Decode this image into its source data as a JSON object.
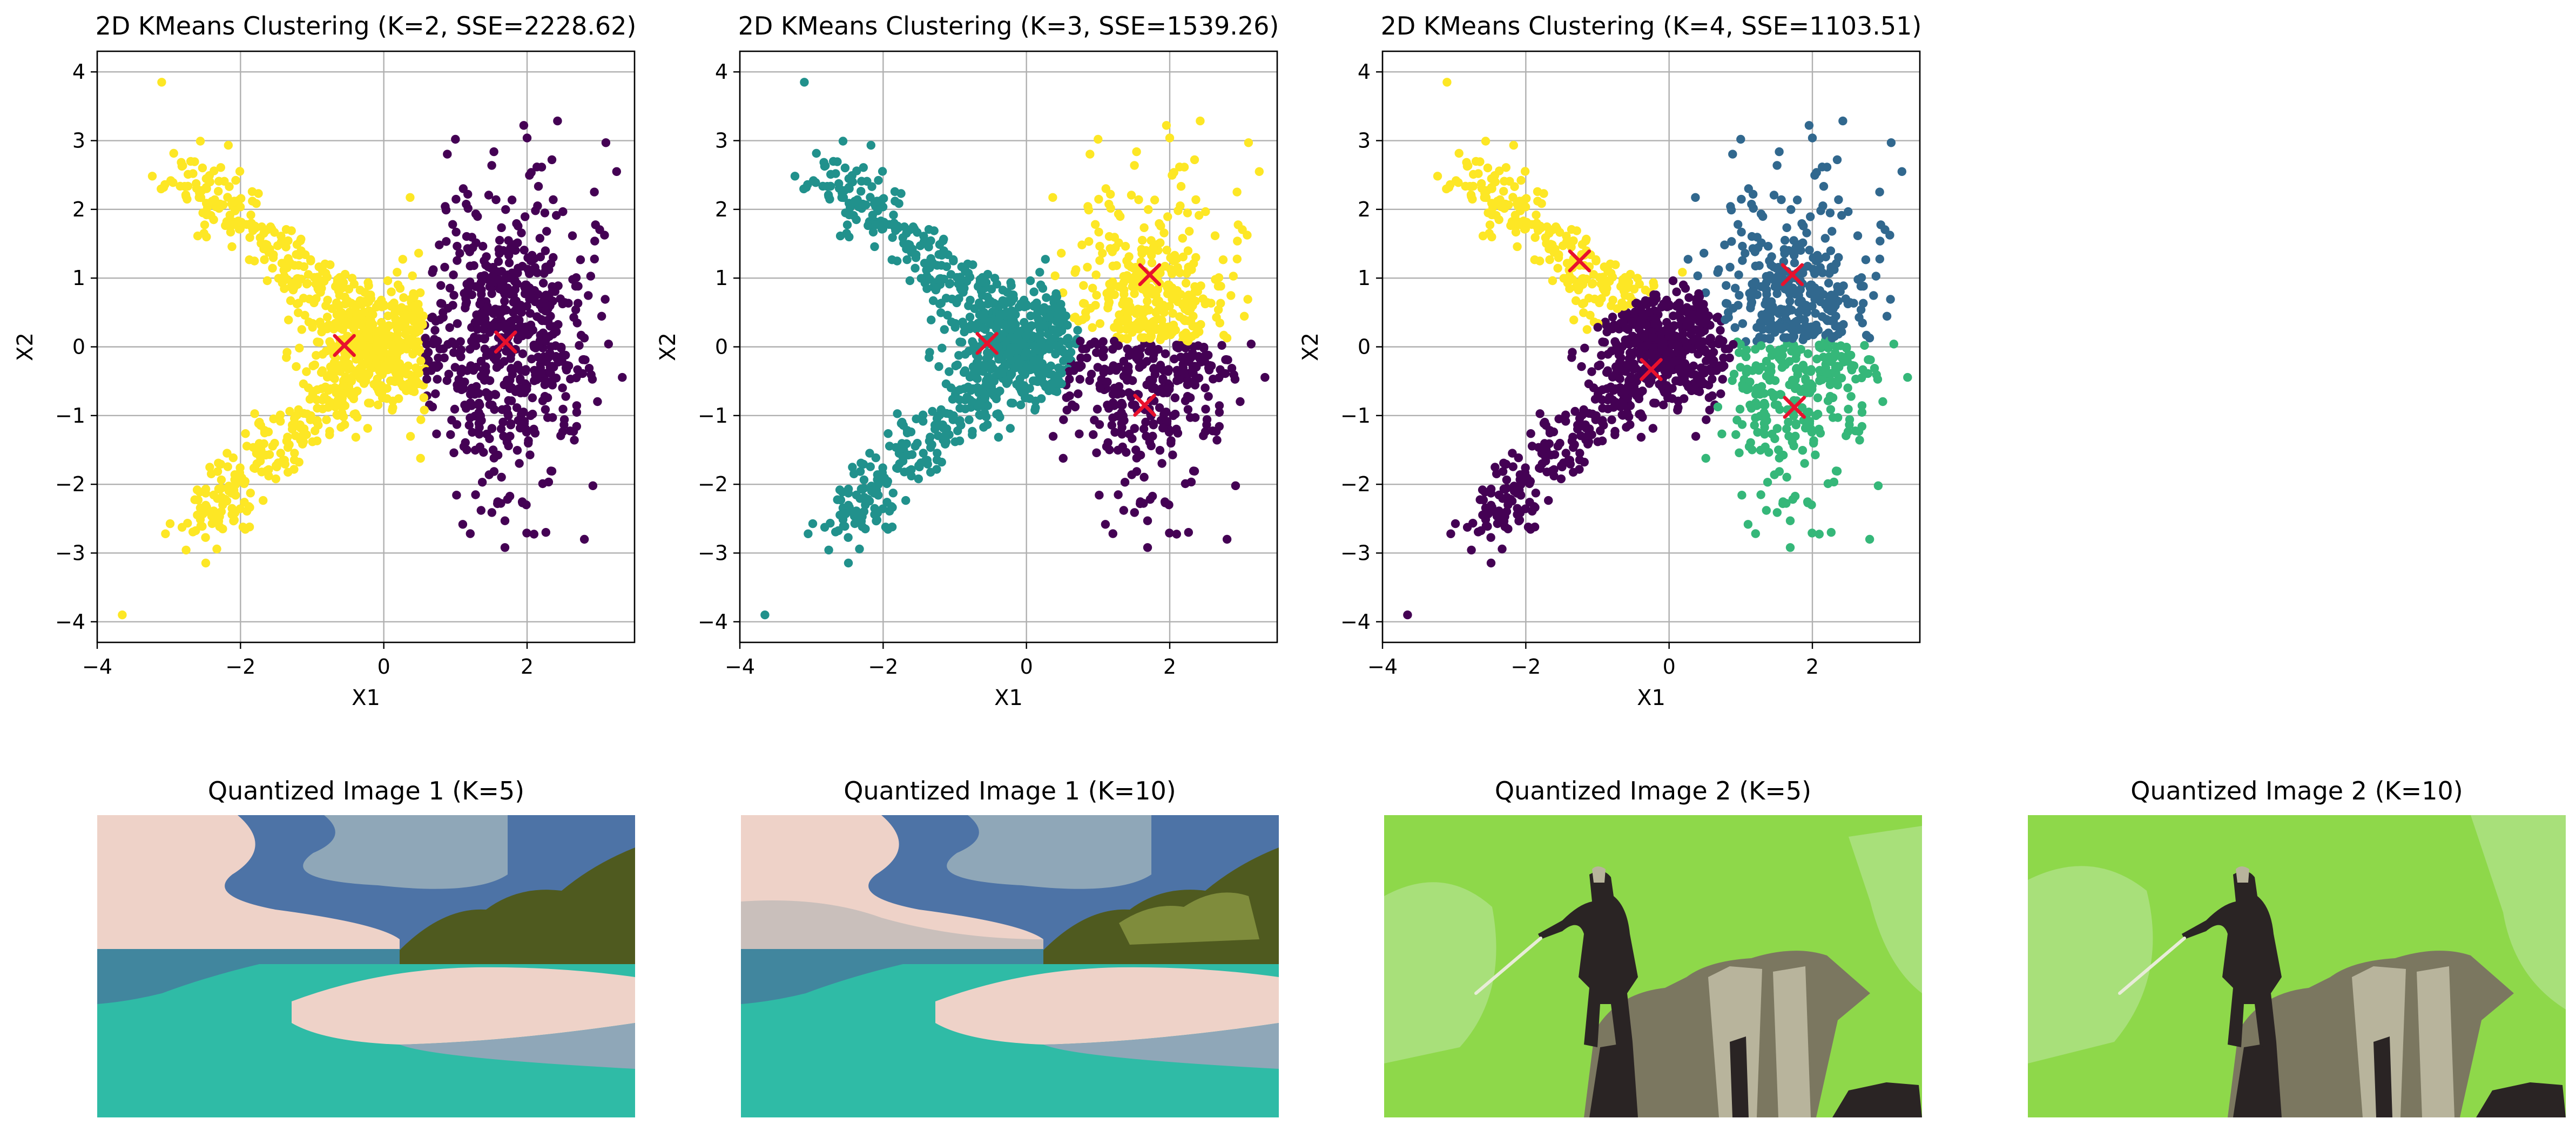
{
  "chart_data": [
    {
      "type": "scatter",
      "title": "2D KMeans Clustering (K=2, SSE=2228.62)",
      "xlabel": "X1",
      "ylabel": "X2",
      "xlim": [
        -4,
        3.5
      ],
      "ylim": [
        -4.3,
        4.3
      ],
      "xticks": [
        "−4",
        "−2",
        "0",
        "2"
      ],
      "yticks": [
        "−4",
        "−3",
        "−2",
        "−1",
        "0",
        "1",
        "2",
        "3",
        "4"
      ],
      "grid": true,
      "k": 2,
      "clusters": [
        {
          "color": "#440154",
          "centroid": [
            1.7,
            0.07
          ]
        },
        {
          "color": "#fde725",
          "centroid": [
            -0.55,
            0.02
          ]
        }
      ],
      "centroid_marker": {
        "symbol": "x",
        "color": "#e8112d"
      }
    },
    {
      "type": "scatter",
      "title": "2D KMeans Clustering (K=3, SSE=1539.26)",
      "xlabel": "X1",
      "ylabel": "X2",
      "xlim": [
        -4,
        3.5
      ],
      "ylim": [
        -4.3,
        4.3
      ],
      "xticks": [
        "−4",
        "−2",
        "0",
        "2"
      ],
      "yticks": [
        "−4",
        "−3",
        "−2",
        "−1",
        "0",
        "1",
        "2",
        "3",
        "4"
      ],
      "grid": true,
      "k": 3,
      "clusters": [
        {
          "color": "#440154",
          "centroid": [
            1.65,
            -0.85
          ]
        },
        {
          "color": "#21918c",
          "centroid": [
            -0.55,
            0.05
          ]
        },
        {
          "color": "#fde725",
          "centroid": [
            1.72,
            1.05
          ]
        }
      ],
      "centroid_marker": {
        "symbol": "x",
        "color": "#e8112d"
      }
    },
    {
      "type": "scatter",
      "title": "2D KMeans Clustering (K=4, SSE=1103.51)",
      "xlabel": "X1",
      "ylabel": "X2",
      "xlim": [
        -4,
        3.5
      ],
      "ylim": [
        -4.3,
        4.3
      ],
      "xticks": [
        "−4",
        "−2",
        "0",
        "2"
      ],
      "yticks": [
        "−4",
        "−3",
        "−2",
        "−1",
        "0",
        "1",
        "2",
        "3",
        "4"
      ],
      "grid": true,
      "k": 4,
      "clusters": [
        {
          "color": "#440154",
          "centroid": [
            -0.25,
            -0.33
          ]
        },
        {
          "color": "#31688e",
          "centroid": [
            1.72,
            1.05
          ]
        },
        {
          "color": "#35b779",
          "centroid": [
            1.75,
            -0.88
          ]
        },
        {
          "color": "#fde725",
          "centroid": [
            -1.25,
            1.25
          ]
        }
      ],
      "centroid_marker": {
        "symbol": "x",
        "color": "#e8112d"
      }
    }
  ],
  "images": [
    {
      "title": "Quantized Image 1 (K=5)",
      "scene": "beach",
      "k": 5
    },
    {
      "title": "Quantized Image 1 (K=10)",
      "scene": "beach",
      "k": 10
    },
    {
      "title": "Quantized Image 2 (K=5)",
      "scene": "warrior",
      "k": 5
    },
    {
      "title": "Quantized Image 2 (K=10)",
      "scene": "warrior",
      "k": 10
    }
  ],
  "palettes": {
    "beach": {
      "sand": "#eed2c8",
      "sky": "#4d73a6",
      "sky_light": "#8fa7b8",
      "haze": "#c9bfbb",
      "water": "#2fbba6",
      "water_deep": "#41869e",
      "trees": "#4f5a1f",
      "trees_light": "#7f8c3c"
    },
    "warrior": {
      "green": "#8ed84a",
      "green_light": "#a8e07a",
      "dark": "#2a2424",
      "stone": "#7b7760",
      "stone_light": "#b8b49c"
    }
  }
}
